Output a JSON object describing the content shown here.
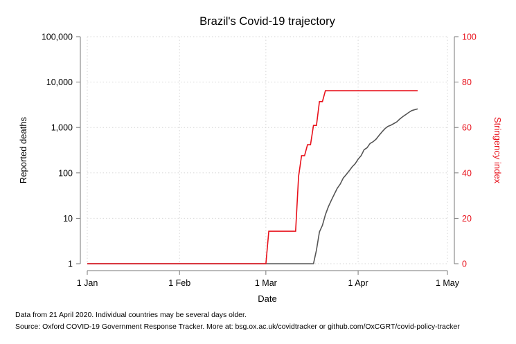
{
  "chart_data": {
    "type": "line",
    "title": "Brazil's Covid-19 trajectory",
    "xlabel": "Date",
    "ylabel": "Reported deaths",
    "y2label": "Stringency index",
    "x_ticks": [
      "1 Jan",
      "1 Feb",
      "1 Mar",
      "1 Apr",
      "1 May"
    ],
    "y_ticks": [
      "1",
      "10",
      "100",
      "1,000",
      "10,000",
      "100,000"
    ],
    "y2_ticks": [
      "0",
      "20",
      "40",
      "60",
      "80",
      "100"
    ],
    "y_scale": "log",
    "ylim": [
      1,
      100000
    ],
    "y2lim": [
      0,
      100
    ],
    "xlim": [
      "2020-01-01",
      "2020-05-01"
    ],
    "grid": true,
    "colors": {
      "deaths": "#555555",
      "stringency": "#e8101a",
      "right_axis": "#e8101a"
    },
    "series": [
      {
        "axis": "left",
        "x": [
          "2020-01-01",
          "2020-03-01",
          "2020-03-17",
          "2020-03-18",
          "2020-03-19",
          "2020-03-20",
          "2020-03-21",
          "2020-03-22",
          "2020-03-23",
          "2020-03-24",
          "2020-03-25",
          "2020-03-26",
          "2020-03-27",
          "2020-03-28",
          "2020-03-29",
          "2020-03-30",
          "2020-03-31",
          "2020-04-01",
          "2020-04-02",
          "2020-04-03",
          "2020-04-04",
          "2020-04-05",
          "2020-04-06",
          "2020-04-07",
          "2020-04-08",
          "2020-04-09",
          "2020-04-10",
          "2020-04-11",
          "2020-04-12",
          "2020-04-13",
          "2020-04-14",
          "2020-04-15",
          "2020-04-16",
          "2020-04-17",
          "2020-04-18",
          "2020-04-19",
          "2020-04-20",
          "2020-04-21"
        ],
        "y": [
          1,
          1,
          1,
          2,
          5,
          7,
          12,
          18,
          25,
          34,
          46,
          57,
          77,
          92,
          111,
          136,
          159,
          201,
          240,
          324,
          359,
          445,
          486,
          553,
          667,
          800,
          941,
          1056,
          1124,
          1223,
          1328,
          1532,
          1736,
          1924,
          2141,
          2354,
          2462,
          2575
        ]
      },
      {
        "axis": "right",
        "x": [
          "2020-01-01",
          "2020-03-01",
          "2020-03-02",
          "2020-03-11",
          "2020-03-12",
          "2020-03-13",
          "2020-03-14",
          "2020-03-15",
          "2020-03-16",
          "2020-03-17",
          "2020-03-18",
          "2020-03-19",
          "2020-03-20",
          "2020-03-21",
          "2020-04-21"
        ],
        "y": [
          0,
          0,
          14.3,
          14.3,
          38.5,
          47.6,
          47.6,
          52.4,
          52.4,
          60.9,
          60.9,
          71.4,
          71.4,
          76.2,
          76.2
        ]
      }
    ]
  },
  "notes": [
    "Data from 21 April 2020. Individual countries may be several days older.",
    "Source: Oxford COVID-19 Government Response Tracker. More at: bsg.ox.ac.uk/covidtracker or github.com/OxCGRT/covid-policy-tracker"
  ]
}
